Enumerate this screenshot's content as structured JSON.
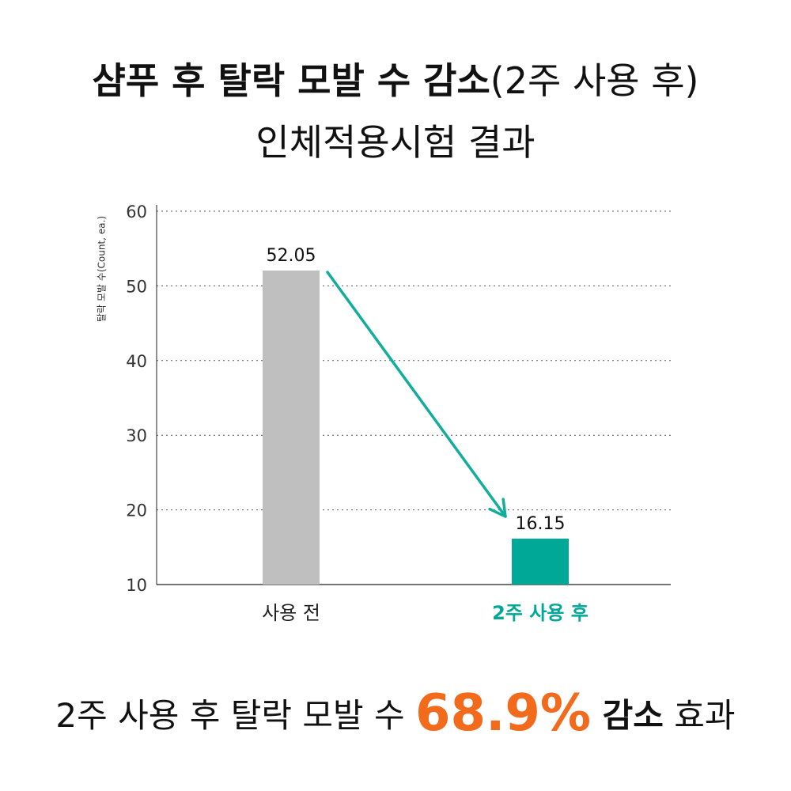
{
  "title": {
    "line1_bold": "샴푸 후 탈락 모발 수 감소",
    "line1_light": "(2주 사용 후)",
    "line2": "인체적용시험 결과"
  },
  "summary": {
    "prefix": "2주 사용 후 탈락 모발 수 ",
    "highlight": "68.9%",
    "bold": " 감소",
    "suffix": " 효과"
  },
  "colors": {
    "before_bar": "#bfbfbf",
    "after_bar": "#00a997",
    "arrow": "#13ad9c",
    "highlight": "#f26a1b"
  },
  "chart_data": {
    "type": "bar",
    "ylabel": "탈락 모발 수(Count, ea.)",
    "xlabel": "",
    "ylim": [
      10,
      60
    ],
    "yticks": [
      10,
      20,
      30,
      40,
      50,
      60
    ],
    "grid": "horizontal-dotted",
    "categories": [
      "사용 전",
      "2주 사용 후"
    ],
    "values": [
      52.05,
      16.15
    ],
    "value_labels": [
      "52.05",
      "16.15"
    ],
    "annotation": "arrow from 사용 전 bar to 2주 사용 후 bar"
  }
}
